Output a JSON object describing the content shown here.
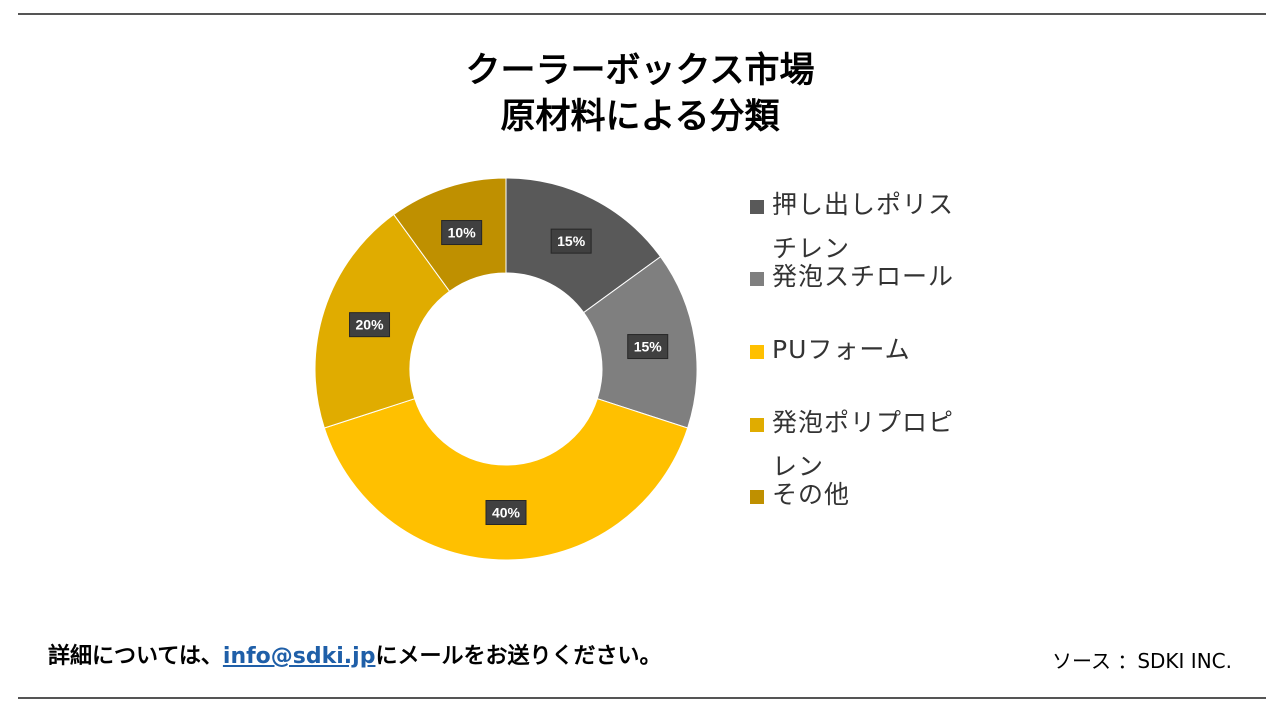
{
  "chart_data": {
    "type": "pie",
    "title_line1": "クーラーボックス市場",
    "title_line2": "原材料による分類",
    "categories": [
      "押し出しポリスチレン",
      "発泡スチロール",
      "PUフォーム",
      "発泡ポリプロピレン",
      "その他"
    ],
    "values": [
      15,
      15,
      40,
      20,
      10
    ],
    "labels": [
      "15%",
      "15%",
      "40%",
      "20%",
      "10%"
    ],
    "colors": [
      "#595959",
      "#7f7f7f",
      "#ffc000",
      "#e0ac00",
      "#bf9000"
    ],
    "legend_position": "right"
  },
  "footer": {
    "prefix": "詳細については、",
    "email": "info@sdki.jp",
    "suffix": "にメールをお送りください。",
    "source": "ソース ：SDKI INC."
  }
}
